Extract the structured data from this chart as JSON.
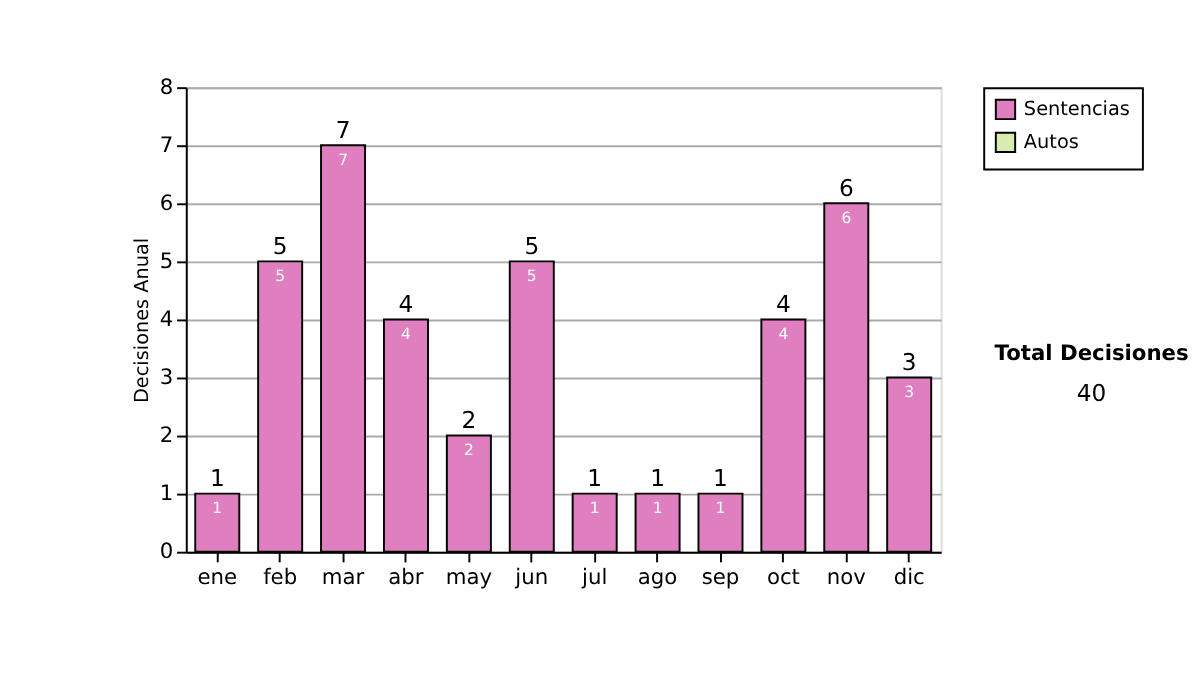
{
  "chart_data": {
    "type": "bar",
    "ylabel": "Decisiones Anual",
    "categories": [
      "ene",
      "feb",
      "mar",
      "abr",
      "may",
      "jun",
      "jul",
      "ago",
      "sep",
      "oct",
      "nov",
      "dic"
    ],
    "series": [
      {
        "name": "Sentencias",
        "color": "#e07fc0",
        "values": [
          1,
          5,
          7,
          4,
          2,
          5,
          1,
          1,
          1,
          4,
          6,
          3
        ],
        "value_labels": [
          "1",
          "5",
          "7",
          "4",
          "2",
          "5",
          "1",
          "1",
          "1",
          "4",
          "6",
          "3"
        ]
      },
      {
        "name": "Autos",
        "color": "#d8ecb0",
        "values": [
          0,
          0,
          0,
          0,
          0,
          0,
          0,
          0,
          0,
          0,
          0,
          0
        ]
      }
    ],
    "totals": [
      "1",
      "5",
      "7",
      "4",
      "2",
      "5",
      "1",
      "1",
      "1",
      "4",
      "6",
      "3"
    ],
    "ylim": [
      0,
      8
    ],
    "yticks": [
      0,
      1,
      2,
      3,
      4,
      5,
      6,
      7,
      8
    ],
    "grid": "y",
    "legend": "right",
    "annotations": [
      "Total Decisiones",
      "40"
    ]
  }
}
